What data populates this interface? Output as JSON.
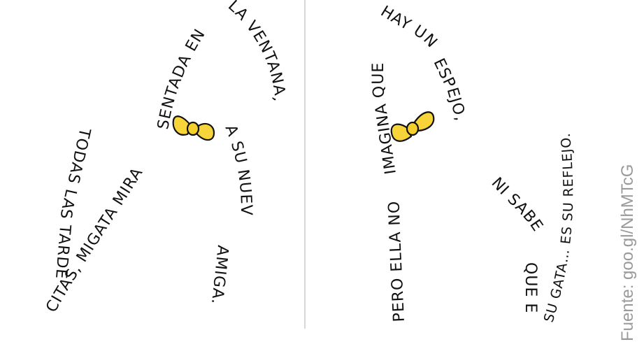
{
  "left_poem": {
    "seg1": "TODAS LAS TARDE",
    "seg2": "CITAS, MIGATA MIRA",
    "seg3": "SENTADA EN",
    "seg4": "LA VENTANA,",
    "seg5": "A SU NUEVA",
    "seg6": "AMIGA."
  },
  "right_poem": {
    "seg1": "PERO ELLA NO",
    "seg2": "IMAGINA QUE",
    "seg3": "HAY UN",
    "seg4": "ESPEJO,",
    "seg5": "NI SABE",
    "seg6": "QUE ES",
    "seg7": "SU GATA… ES SU REFLEJO."
  },
  "source": "Fuente: goo.gl/NhMTcG",
  "colors": {
    "bow": "#f7d53a",
    "ink": "#111111",
    "divider": "#bdbdbd",
    "source": "#9a9a9a"
  }
}
